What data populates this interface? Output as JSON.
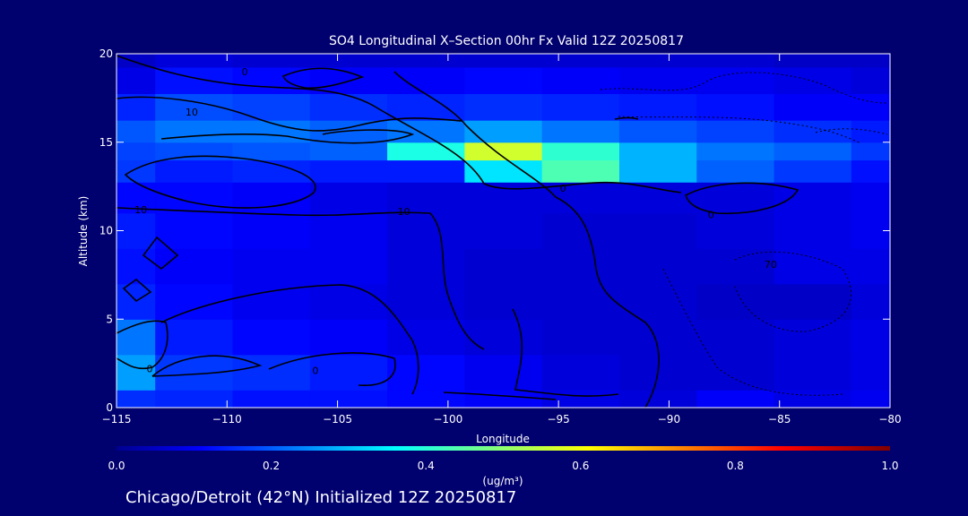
{
  "chart_data": {
    "type": "heatmap",
    "title": "SO4 Longitudinal X–Section 00hr  Fx Valid 12Z 20250817",
    "xlabel": "Longitude",
    "ylabel": "Altitude (km)",
    "xlim": [
      -115,
      -80
    ],
    "ylim": [
      0,
      20
    ],
    "x_ticks": [
      -115,
      -110,
      -105,
      -100,
      -95,
      -90,
      -85,
      -80
    ],
    "x_tick_labels": [
      "−115",
      "−110",
      "−105",
      "−100",
      "−95",
      "−90",
      "−85",
      "−80"
    ],
    "y_ticks": [
      0,
      5,
      10,
      15,
      20
    ],
    "y_tick_labels": [
      "0",
      "5",
      "10",
      "15",
      "20"
    ],
    "colorbar": {
      "label": "(ug/m³)",
      "range": [
        0.0,
        1.0
      ],
      "ticks": [
        0.0,
        0.2,
        0.4,
        0.6,
        0.8,
        1.0
      ],
      "tick_labels": [
        "0.0",
        "0.2",
        "0.4",
        "0.6",
        "0.8",
        "1.0"
      ],
      "colormap": "jet"
    },
    "field_description": "SO4 concentration, gridded (lon x altitude)",
    "grid_lon": [
      -115,
      -111.5,
      -108,
      -104.5,
      -101,
      -97.5,
      -94,
      -90.5,
      -87,
      -83.5,
      -80
    ],
    "grid_alt": [
      0,
      2,
      4,
      6,
      8,
      10,
      12,
      13.5,
      14.5,
      15.5,
      17,
      18.5,
      20
    ],
    "values": [
      [
        0.17,
        0.16,
        0.14,
        0.14,
        0.13,
        0.12,
        0.1,
        0.09,
        0.12,
        0.1,
        0.11
      ],
      [
        0.28,
        0.18,
        0.17,
        0.15,
        0.13,
        0.11,
        0.09,
        0.08,
        0.08,
        0.09,
        0.1
      ],
      [
        0.24,
        0.15,
        0.13,
        0.12,
        0.1,
        0.09,
        0.08,
        0.08,
        0.08,
        0.09,
        0.1
      ],
      [
        0.16,
        0.13,
        0.11,
        0.1,
        0.09,
        0.08,
        0.08,
        0.08,
        0.07,
        0.07,
        0.09
      ],
      [
        0.14,
        0.12,
        0.11,
        0.11,
        0.09,
        0.08,
        0.08,
        0.08,
        0.08,
        0.1,
        0.1
      ],
      [
        0.15,
        0.13,
        0.12,
        0.11,
        0.09,
        0.09,
        0.08,
        0.08,
        0.09,
        0.1,
        0.11
      ],
      [
        0.13,
        0.13,
        0.12,
        0.1,
        0.09,
        0.09,
        0.09,
        0.09,
        0.09,
        0.1,
        0.11
      ],
      [
        0.18,
        0.15,
        0.16,
        0.15,
        0.15,
        0.35,
        0.45,
        0.3,
        0.22,
        0.18,
        0.14
      ],
      [
        0.19,
        0.2,
        0.21,
        0.22,
        0.4,
        0.58,
        0.42,
        0.3,
        0.24,
        0.22,
        0.18
      ],
      [
        0.21,
        0.24,
        0.24,
        0.22,
        0.24,
        0.28,
        0.24,
        0.21,
        0.19,
        0.17,
        0.15
      ],
      [
        0.16,
        0.2,
        0.19,
        0.17,
        0.16,
        0.17,
        0.16,
        0.15,
        0.14,
        0.12,
        0.12
      ],
      [
        0.1,
        0.14,
        0.13,
        0.12,
        0.12,
        0.13,
        0.12,
        0.11,
        0.11,
        0.1,
        0.09
      ],
      [
        0.07,
        0.09,
        0.08,
        0.08,
        0.08,
        0.08,
        0.08,
        0.08,
        0.08,
        0.07,
        0.07
      ]
    ],
    "contour_labels": [
      {
        "text": "0",
        "lon": -109.2,
        "alt": 19.0
      },
      {
        "text": "10",
        "lon": -111.6,
        "alt": 16.7
      },
      {
        "text": "10",
        "lon": -113.9,
        "alt": 11.2
      },
      {
        "text": "10",
        "lon": -102.0,
        "alt": 11.1
      },
      {
        "text": "0",
        "lon": -94.8,
        "alt": 12.4
      },
      {
        "text": "0",
        "lon": -88.1,
        "alt": 10.9
      },
      {
        "text": "70",
        "lon": -85.4,
        "alt": 8.1
      },
      {
        "text": "0",
        "lon": -113.5,
        "alt": 2.2
      },
      {
        "text": "0",
        "lon": -106.0,
        "alt": 2.1
      }
    ]
  },
  "footer": {
    "caption": "Chicago/Detroit (42°N) Initialized 12Z 20250817"
  },
  "colors": {
    "background": "#00006f",
    "frame": "#ffffff",
    "contour": "#000000"
  }
}
